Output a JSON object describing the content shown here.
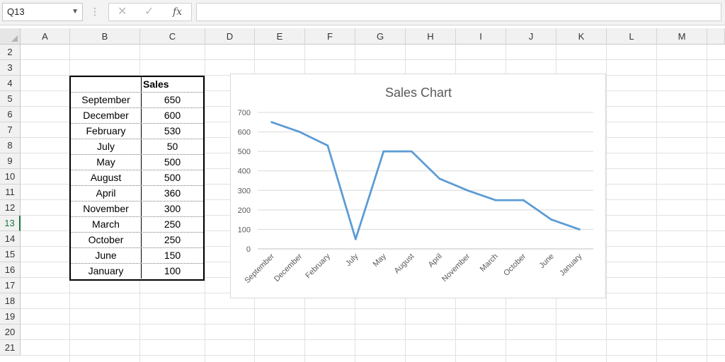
{
  "formula_bar": {
    "name_box": "Q13",
    "cancel_symbol": "✕",
    "enter_symbol": "✓",
    "fx_symbol": "fx",
    "formula": ""
  },
  "columns": [
    "A",
    "B",
    "C",
    "D",
    "E",
    "F",
    "G",
    "H",
    "I",
    "J",
    "K",
    "L",
    "M"
  ],
  "rows": [
    "2",
    "3",
    "4",
    "5",
    "6",
    "7",
    "8",
    "9",
    "10",
    "11",
    "12",
    "13",
    "14",
    "15",
    "16",
    "17",
    "18",
    "19",
    "20",
    "21"
  ],
  "active_row": "13",
  "table": {
    "header": "Sales",
    "rows": [
      {
        "month": "September",
        "sales": "650"
      },
      {
        "month": "December",
        "sales": "600"
      },
      {
        "month": "February",
        "sales": "530"
      },
      {
        "month": "July",
        "sales": "50"
      },
      {
        "month": "May",
        "sales": "500"
      },
      {
        "month": "August",
        "sales": "500"
      },
      {
        "month": "April",
        "sales": "360"
      },
      {
        "month": "November",
        "sales": "300"
      },
      {
        "month": "March",
        "sales": "250"
      },
      {
        "month": "October",
        "sales": "250"
      },
      {
        "month": "June",
        "sales": "150"
      },
      {
        "month": "January",
        "sales": "100"
      }
    ]
  },
  "chart_data": {
    "type": "line",
    "title": "Sales Chart",
    "categories": [
      "September",
      "December",
      "February",
      "July",
      "May",
      "August",
      "April",
      "November",
      "March",
      "October",
      "June",
      "January"
    ],
    "series": [
      {
        "values": [
          650,
          600,
          530,
          50,
          500,
          500,
          360,
          300,
          250,
          250,
          150,
          100
        ]
      }
    ],
    "yticks": [
      "0",
      "100",
      "200",
      "300",
      "400",
      "500",
      "600",
      "700"
    ],
    "ylim": [
      0,
      700
    ],
    "grid": true,
    "legend": "none",
    "line_color": "#5b9bd5"
  }
}
